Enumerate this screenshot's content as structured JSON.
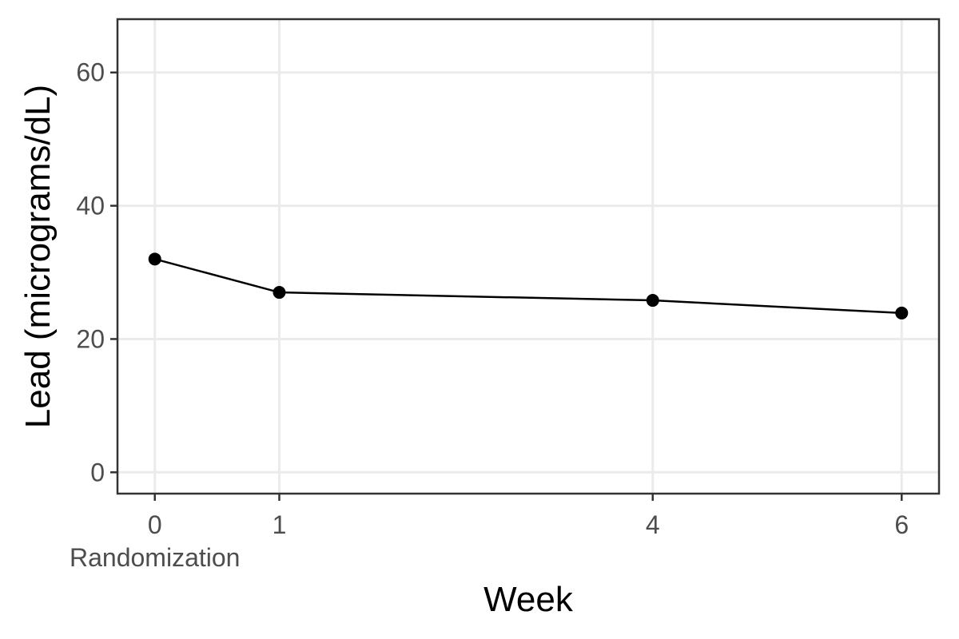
{
  "chart_data": {
    "type": "line",
    "title": "",
    "xlabel": "Week",
    "ylabel": "Lead (micrograms/dL)",
    "x": [
      0,
      1,
      4,
      6
    ],
    "x_ticks": [
      {
        "value": 0,
        "label": "0",
        "sublabel": "Randomization"
      },
      {
        "value": 1,
        "label": "1",
        "sublabel": ""
      },
      {
        "value": 4,
        "label": "4",
        "sublabel": ""
      },
      {
        "value": 6,
        "label": "6",
        "sublabel": ""
      }
    ],
    "y_ticks": [
      0,
      20,
      40,
      60
    ],
    "series": [
      {
        "values": [
          32,
          27,
          25.8,
          23.9
        ]
      }
    ],
    "xlim": [
      -0.3,
      6.3
    ],
    "ylim": [
      -3.2,
      68
    ],
    "grid": true,
    "legend": "none",
    "colors": {
      "line": "#000000",
      "point": "#000000",
      "grid": "#ebebeb",
      "panel_border": "#333333",
      "tick_text": "#4d4d4d"
    }
  }
}
